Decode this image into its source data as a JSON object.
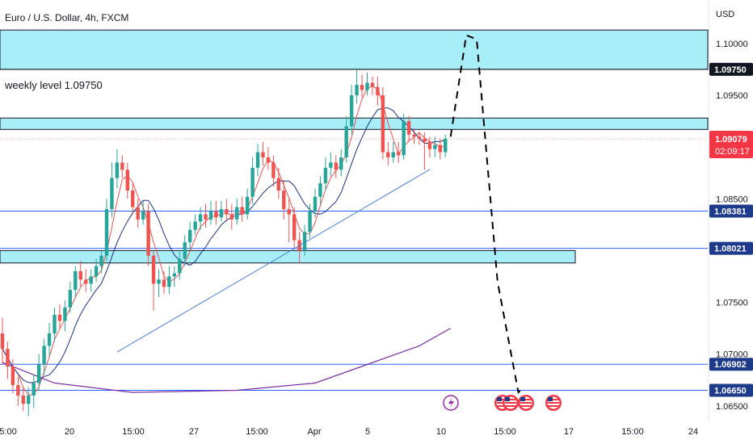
{
  "header": {
    "symbol_title": "Euro / U.S. Dollar, 4h, FXCM",
    "currency": "USD"
  },
  "annotation": {
    "weekly_level_text": "weekly level 1.09750"
  },
  "colors": {
    "zone_fill": "#a7eef9",
    "candle_up": "#26a69a",
    "candle_down": "#ef5350",
    "ma_fast": "#ef5350",
    "ma_mid": "#1c2f8a",
    "ma_slow": "#7b2fa5",
    "blue_line": "#2962ff",
    "trend_line": "#4a7de2",
    "black_tag": "#131722",
    "blue_tag": "#1e3a8a",
    "price_tag": "#f23645"
  },
  "price_axis": {
    "ticks": [
      "1.10000",
      "1.09500",
      "1.08500",
      "1.07500",
      "1.07000",
      "1.06500"
    ],
    "tags": [
      {
        "label": "1.09750",
        "color": "black"
      },
      {
        "label": "1.08381",
        "color": "blue"
      },
      {
        "label": "1.08021",
        "color": "blue"
      },
      {
        "label": "1.06902",
        "color": "blue"
      },
      {
        "label": "1.06650",
        "color": "blue"
      }
    ],
    "current_price": "1.09079",
    "countdown": "02:09:17"
  },
  "time_axis": {
    "ticks": [
      "5:00",
      "20",
      "15:00",
      "27",
      "15:00",
      "Apr",
      "5",
      "10",
      "15:00",
      "17",
      "15:00",
      "24"
    ]
  },
  "events": {
    "icons": [
      "lightning-icon",
      "us-flag-icon",
      "us-flag-icon",
      "us-flag-icon",
      "us-flag-icon"
    ]
  },
  "chart_data": {
    "type": "candlestick",
    "title": "Euro / U.S. Dollar, 4h, FXCM",
    "ylim": [
      1.0635,
      1.1042
    ],
    "price_levels": {
      "weekly_level": 1.0975,
      "blue_lines": [
        1.08381,
        1.08021,
        1.06902,
        1.0665
      ],
      "current": 1.09079
    },
    "zones": [
      {
        "from": 1.0975,
        "to": 1.1013
      },
      {
        "from": 1.0917,
        "to": 1.0928
      },
      {
        "from": 1.0788,
        "to": 1.08
      }
    ],
    "candles": [
      [
        1.072,
        1.0705,
        1.0735,
        1.069
      ],
      [
        1.0705,
        1.0688,
        1.0712,
        1.0676
      ],
      [
        1.0688,
        1.067,
        1.0695,
        1.0662
      ],
      [
        1.067,
        1.066,
        1.0678,
        1.065
      ],
      [
        1.066,
        1.0652,
        1.0668,
        1.0645
      ],
      [
        1.0652,
        1.066,
        1.0668,
        1.064
      ],
      [
        1.066,
        1.0672,
        1.068,
        1.0648
      ],
      [
        1.0672,
        1.069,
        1.07,
        1.0665
      ],
      [
        1.069,
        1.0708,
        1.0715,
        1.068
      ],
      [
        1.0708,
        1.072,
        1.073,
        1.0698
      ],
      [
        1.072,
        1.0738,
        1.0745,
        1.0712
      ],
      [
        1.0738,
        1.0732,
        1.0748,
        1.0725
      ],
      [
        1.0732,
        1.0745,
        1.0752,
        1.0722
      ],
      [
        1.0745,
        1.0762,
        1.077,
        1.074
      ],
      [
        1.0762,
        1.078,
        1.0785,
        1.0755
      ],
      [
        1.078,
        1.0772,
        1.079,
        1.0765
      ],
      [
        1.0772,
        1.0768,
        1.0782,
        1.076
      ],
      [
        1.0768,
        1.0775,
        1.0782,
        1.076
      ],
      [
        1.0775,
        1.0785,
        1.0792,
        1.077
      ],
      [
        1.0785,
        1.0795,
        1.08,
        1.0778
      ],
      [
        1.0795,
        1.084,
        1.085,
        1.079
      ],
      [
        1.084,
        1.087,
        1.0885,
        1.0832
      ],
      [
        1.087,
        1.0885,
        1.0898,
        1.086
      ],
      [
        1.0885,
        1.0878,
        1.0892,
        1.087
      ],
      [
        1.0878,
        1.0858,
        1.0885,
        1.085
      ],
      [
        1.0858,
        1.0842,
        1.0865,
        1.0835
      ],
      [
        1.0842,
        1.083,
        1.085,
        1.0822
      ],
      [
        1.083,
        1.0838,
        1.0848,
        1.0825
      ],
      [
        1.0838,
        1.0795,
        1.0845,
        1.0785
      ],
      [
        1.0795,
        1.0768,
        1.08,
        1.0742
      ],
      [
        1.0768,
        1.0772,
        1.0782,
        1.0755
      ],
      [
        1.0772,
        1.0765,
        1.078,
        1.0758
      ],
      [
        1.0765,
        1.0775,
        1.0785,
        1.0758
      ],
      [
        1.0775,
        1.0778,
        1.0785,
        1.0765
      ],
      [
        1.0778,
        1.0792,
        1.08,
        1.0772
      ],
      [
        1.0792,
        1.0808,
        1.0815,
        1.0785
      ],
      [
        1.0808,
        1.082,
        1.0828,
        1.08
      ],
      [
        1.082,
        1.0828,
        1.0835,
        1.0815
      ],
      [
        1.0828,
        1.0835,
        1.0842,
        1.082
      ],
      [
        1.0835,
        1.083,
        1.0845,
        1.0822
      ],
      [
        1.083,
        1.0838,
        1.0848,
        1.0825
      ],
      [
        1.0838,
        1.0832,
        1.0848,
        1.0825
      ],
      [
        1.0832,
        1.084,
        1.0848,
        1.0828
      ],
      [
        1.084,
        1.0835,
        1.085,
        1.0828
      ],
      [
        1.0835,
        1.083,
        1.0845,
        1.082
      ],
      [
        1.083,
        1.0842,
        1.085,
        1.0825
      ],
      [
        1.0842,
        1.0835,
        1.0852,
        1.0828
      ],
      [
        1.0835,
        1.0852,
        1.086,
        1.083
      ],
      [
        1.0852,
        1.088,
        1.089,
        1.0845
      ],
      [
        1.088,
        1.0895,
        1.0903,
        1.0872
      ],
      [
        1.0895,
        1.089,
        1.0905,
        1.0882
      ],
      [
        1.089,
        1.0885,
        1.09,
        1.0878
      ],
      [
        1.0885,
        1.087,
        1.0892,
        1.0862
      ],
      [
        1.087,
        1.0858,
        1.088,
        1.085
      ],
      [
        1.0858,
        1.084,
        1.0868,
        1.083
      ],
      [
        1.084,
        1.0835,
        1.085,
        1.0808
      ],
      [
        1.0835,
        1.081,
        1.0842,
        1.0802
      ],
      [
        1.081,
        1.08,
        1.0818,
        1.0788
      ],
      [
        1.08,
        1.0818,
        1.0825,
        1.0795
      ],
      [
        1.0818,
        1.0838,
        1.0845,
        1.0812
      ],
      [
        1.0838,
        1.0852,
        1.086,
        1.0832
      ],
      [
        1.0852,
        1.0865,
        1.0872,
        1.0845
      ],
      [
        1.0865,
        1.088,
        1.089,
        1.0858
      ],
      [
        1.088,
        1.0885,
        1.0895,
        1.0872
      ],
      [
        1.0885,
        1.0878,
        1.0892,
        1.087
      ],
      [
        1.0878,
        1.089,
        1.0898,
        1.0872
      ],
      [
        1.089,
        1.092,
        1.093,
        1.0885
      ],
      [
        1.092,
        1.095,
        1.096,
        1.0912
      ],
      [
        1.095,
        1.096,
        1.0975,
        1.0942
      ],
      [
        1.096,
        1.0955,
        1.097,
        1.0948
      ],
      [
        1.0955,
        1.0962,
        1.0972,
        1.095
      ],
      [
        1.0962,
        1.0958,
        1.0968,
        1.095
      ],
      [
        1.0958,
        1.095,
        1.0968,
        1.094
      ],
      [
        1.095,
        1.0895,
        1.0958,
        1.0888
      ],
      [
        1.0895,
        1.089,
        1.0905,
        1.0882
      ],
      [
        1.089,
        1.0895,
        1.0905,
        1.0885
      ],
      [
        1.0895,
        1.0892,
        1.0905,
        1.0885
      ],
      [
        1.0892,
        1.0925,
        1.0932,
        1.0888
      ],
      [
        1.0925,
        1.0912,
        1.093,
        1.0905
      ],
      [
        1.0912,
        1.091,
        1.0918,
        1.0903
      ],
      [
        1.091,
        1.0908,
        1.0915,
        1.0902
      ],
      [
        1.0908,
        1.0905,
        1.0914,
        1.0878
      ],
      [
        1.0905,
        1.0898,
        1.091,
        1.089
      ],
      [
        1.0898,
        1.0902,
        1.091,
        1.089
      ],
      [
        1.0902,
        1.0895,
        1.0908,
        1.0888
      ],
      [
        1.0895,
        1.0908,
        1.0912,
        1.089
      ]
    ],
    "ma_slow_points": [
      [
        0,
        1.0692
      ],
      [
        10,
        1.0672
      ],
      [
        25,
        1.0663
      ],
      [
        45,
        1.0665
      ],
      [
        60,
        1.0672
      ],
      [
        70,
        1.069
      ],
      [
        80,
        1.0708
      ],
      [
        86,
        1.0725
      ]
    ],
    "trendline": [
      [
        22,
        1.0702
      ],
      [
        79,
        1.0877
      ]
    ],
    "projection": [
      [
        86,
        1.091
      ],
      [
        89,
        1.1008
      ],
      [
        91,
        1.1004
      ],
      [
        95,
        1.077
      ],
      [
        99,
        1.0663
      ],
      [
        100,
        1.0668
      ]
    ],
    "time_ticks": [
      "5:00",
      "20",
      "15:00",
      "27",
      "15:00",
      "Apr",
      "5",
      "10",
      "15:00",
      "17",
      "15:00",
      "24"
    ]
  }
}
